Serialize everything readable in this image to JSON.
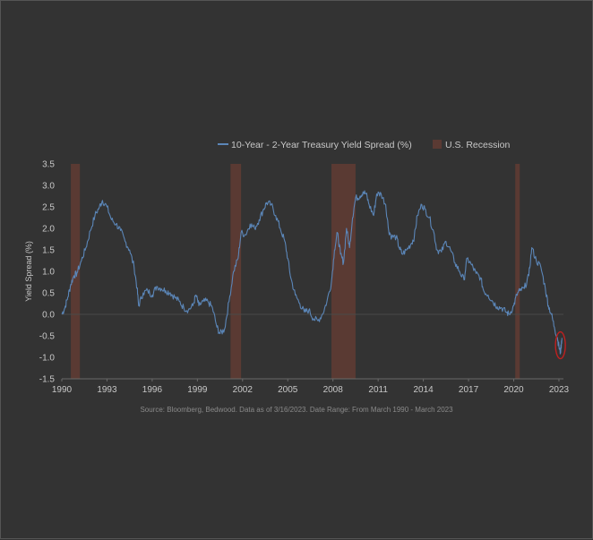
{
  "chart_data": {
    "type": "line",
    "ylabel": "Yield Spread (%)",
    "xlim": [
      1990,
      2023.3
    ],
    "ylim": [
      -1.5,
      3.5
    ],
    "x_ticks": [
      1990,
      1993,
      1996,
      1999,
      2002,
      2005,
      2008,
      2011,
      2014,
      2017,
      2020,
      2023
    ],
    "y_ticks": [
      3.5,
      3.0,
      2.5,
      2.0,
      1.5,
      1.0,
      0.5,
      0.0,
      -0.5,
      -1.0,
      -1.5
    ],
    "legend_position": "top",
    "source_note": "Source: Bloomberg, Bedwood. Data as of 3/16/2023. Date Range: From March 1990 - March 2023",
    "series": [
      {
        "name": "10-Year - 2-Year Treasury Yield Spread (%)",
        "color": "#5b86b8",
        "points": [
          [
            1990.0,
            0.0
          ],
          [
            1990.2,
            0.15
          ],
          [
            1990.4,
            0.4
          ],
          [
            1990.6,
            0.7
          ],
          [
            1990.8,
            0.9
          ],
          [
            1991.0,
            0.95
          ],
          [
            1991.3,
            1.25
          ],
          [
            1991.6,
            1.55
          ],
          [
            1991.9,
            1.95
          ],
          [
            1992.2,
            2.3
          ],
          [
            1992.5,
            2.5
          ],
          [
            1992.7,
            2.65
          ],
          [
            1993.0,
            2.5
          ],
          [
            1993.3,
            2.2
          ],
          [
            1993.6,
            2.1
          ],
          [
            1993.9,
            1.95
          ],
          [
            1994.2,
            1.7
          ],
          [
            1994.5,
            1.5
          ],
          [
            1994.8,
            1.1
          ],
          [
            1995.0,
            0.6
          ],
          [
            1995.1,
            0.2
          ],
          [
            1995.4,
            0.5
          ],
          [
            1995.7,
            0.55
          ],
          [
            1996.0,
            0.45
          ],
          [
            1996.3,
            0.65
          ],
          [
            1996.6,
            0.6
          ],
          [
            1996.9,
            0.55
          ],
          [
            1997.2,
            0.5
          ],
          [
            1997.5,
            0.4
          ],
          [
            1997.8,
            0.3
          ],
          [
            1998.1,
            0.15
          ],
          [
            1998.4,
            0.1
          ],
          [
            1998.7,
            0.2
          ],
          [
            1998.9,
            0.45
          ],
          [
            1999.1,
            0.2
          ],
          [
            1999.4,
            0.3
          ],
          [
            1999.7,
            0.3
          ],
          [
            2000.0,
            0.15
          ],
          [
            2000.3,
            -0.3
          ],
          [
            2000.5,
            -0.45
          ],
          [
            2000.8,
            -0.35
          ],
          [
            2001.1,
            0.3
          ],
          [
            2001.4,
            1.0
          ],
          [
            2001.7,
            1.3
          ],
          [
            2001.9,
            1.9
          ],
          [
            2002.2,
            1.85
          ],
          [
            2002.5,
            2.1
          ],
          [
            2002.8,
            2.0
          ],
          [
            2003.1,
            2.2
          ],
          [
            2003.4,
            2.45
          ],
          [
            2003.6,
            2.6
          ],
          [
            2003.9,
            2.55
          ],
          [
            2004.2,
            2.3
          ],
          [
            2004.5,
            2.0
          ],
          [
            2004.8,
            1.7
          ],
          [
            2005.0,
            1.3
          ],
          [
            2005.2,
            0.85
          ],
          [
            2005.5,
            0.45
          ],
          [
            2005.8,
            0.25
          ],
          [
            2006.1,
            0.05
          ],
          [
            2006.4,
            0.1
          ],
          [
            2006.7,
            -0.1
          ],
          [
            2007.0,
            -0.15
          ],
          [
            2007.3,
            0.0
          ],
          [
            2007.6,
            0.3
          ],
          [
            2007.9,
            0.75
          ],
          [
            2008.1,
            1.5
          ],
          [
            2008.3,
            1.9
          ],
          [
            2008.5,
            1.4
          ],
          [
            2008.7,
            1.2
          ],
          [
            2008.9,
            2.0
          ],
          [
            2009.1,
            1.55
          ],
          [
            2009.3,
            2.25
          ],
          [
            2009.5,
            2.7
          ],
          [
            2009.8,
            2.75
          ],
          [
            2010.0,
            2.85
          ],
          [
            2010.2,
            2.8
          ],
          [
            2010.4,
            2.55
          ],
          [
            2010.7,
            2.3
          ],
          [
            2010.9,
            2.8
          ],
          [
            2011.2,
            2.8
          ],
          [
            2011.5,
            2.55
          ],
          [
            2011.7,
            1.95
          ],
          [
            2011.9,
            1.8
          ],
          [
            2012.2,
            1.8
          ],
          [
            2012.4,
            1.55
          ],
          [
            2012.6,
            1.4
          ],
          [
            2012.9,
            1.5
          ],
          [
            2013.2,
            1.65
          ],
          [
            2013.4,
            1.8
          ],
          [
            2013.6,
            2.3
          ],
          [
            2013.9,
            2.55
          ],
          [
            2014.1,
            2.45
          ],
          [
            2014.4,
            2.25
          ],
          [
            2014.7,
            1.9
          ],
          [
            2014.9,
            1.5
          ],
          [
            2015.2,
            1.45
          ],
          [
            2015.5,
            1.7
          ],
          [
            2015.8,
            1.5
          ],
          [
            2016.1,
            1.2
          ],
          [
            2016.4,
            1.0
          ],
          [
            2016.7,
            0.8
          ],
          [
            2016.9,
            1.3
          ],
          [
            2017.2,
            1.15
          ],
          [
            2017.5,
            0.95
          ],
          [
            2017.8,
            0.85
          ],
          [
            2018.0,
            0.55
          ],
          [
            2018.3,
            0.45
          ],
          [
            2018.6,
            0.3
          ],
          [
            2018.9,
            0.18
          ],
          [
            2019.2,
            0.15
          ],
          [
            2019.5,
            0.05
          ],
          [
            2019.7,
            0.0
          ],
          [
            2020.0,
            0.2
          ],
          [
            2020.2,
            0.45
          ],
          [
            2020.4,
            0.55
          ],
          [
            2020.7,
            0.6
          ],
          [
            2021.0,
            0.9
          ],
          [
            2021.2,
            1.55
          ],
          [
            2021.5,
            1.25
          ],
          [
            2021.8,
            1.1
          ],
          [
            2022.1,
            0.6
          ],
          [
            2022.3,
            0.2
          ],
          [
            2022.5,
            0.0
          ],
          [
            2022.7,
            -0.3
          ],
          [
            2022.9,
            -0.55
          ],
          [
            2023.0,
            -0.75
          ],
          [
            2023.1,
            -0.9
          ],
          [
            2023.2,
            -0.55
          ]
        ]
      },
      {
        "name": "U.S. Recession",
        "color": "#5a3a33",
        "periods": [
          [
            1990.6,
            1991.2
          ],
          [
            2001.2,
            2001.9
          ],
          [
            2007.9,
            2009.5
          ],
          [
            2020.1,
            2020.4
          ]
        ]
      }
    ],
    "annotation": {
      "type": "ellipse",
      "color": "#c02020",
      "x": 2023.1,
      "y": -0.72
    }
  }
}
